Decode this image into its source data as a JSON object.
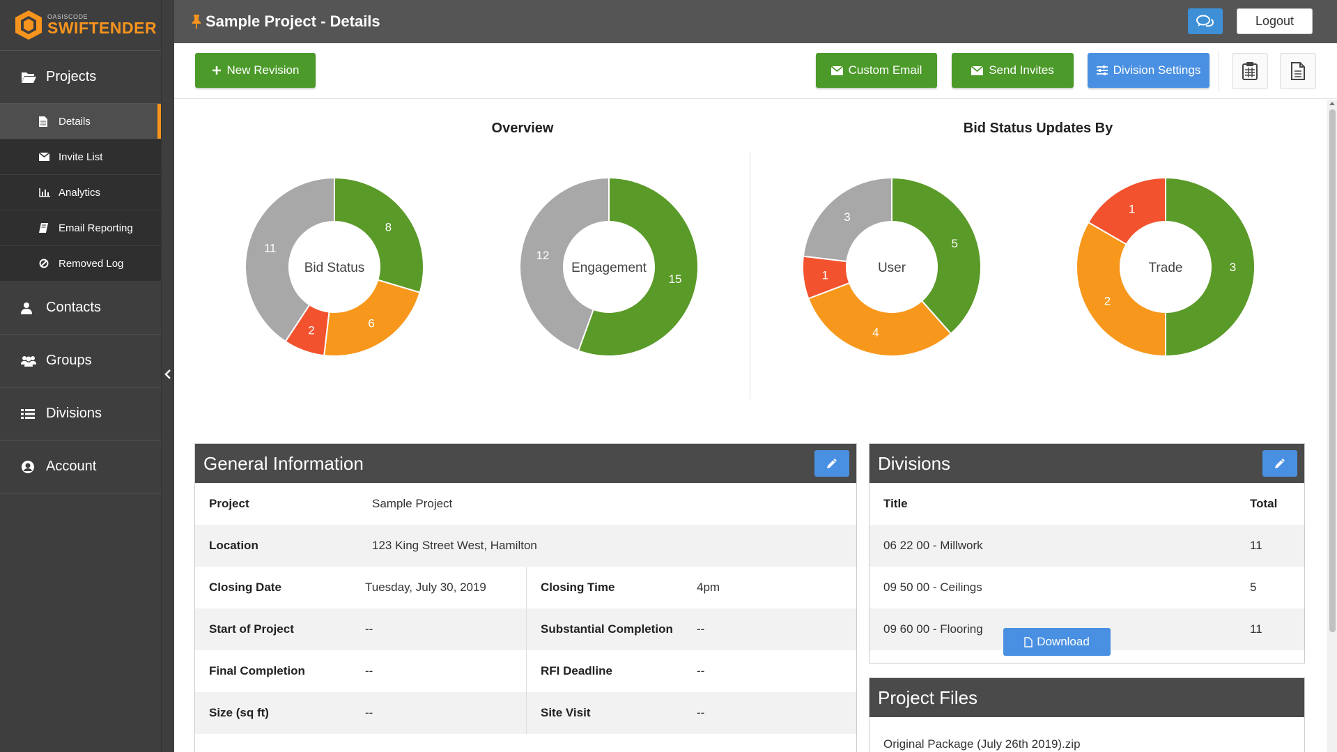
{
  "brand": {
    "small": "OASISCODE",
    "big": "SWIFTENDER",
    "accent": "#f7941d"
  },
  "sidebar": {
    "projects": "Projects",
    "sub_items": [
      {
        "label": "Details",
        "icon": "file-icon",
        "active": true
      },
      {
        "label": "Invite List",
        "icon": "envelope-icon"
      },
      {
        "label": "Analytics",
        "icon": "bar-chart-icon"
      },
      {
        "label": "Email Reporting",
        "icon": "book-icon"
      },
      {
        "label": "Removed Log",
        "icon": "ban-icon"
      }
    ],
    "contacts": "Contacts",
    "groups": "Groups",
    "divisions": "Divisions",
    "account": "Account"
  },
  "header": {
    "title": "Sample Project - Details",
    "logout": "Logout"
  },
  "toolbar": {
    "new_revision": "New Revision",
    "custom_email": "Custom Email",
    "send_invites": "Send Invites",
    "division_settings": "Division Settings"
  },
  "charts": {
    "overview_title": "Overview",
    "bid_updates_title": "Bid Status Updates By"
  },
  "colors": {
    "green": "#5a9a28",
    "orange": "#f7981d",
    "red": "#f2522e",
    "gray": "#a8a8a8"
  },
  "chart_data": [
    {
      "type": "pie",
      "title": "Bid Status",
      "slices": [
        {
          "value": 8,
          "color": "green"
        },
        {
          "value": 6,
          "color": "orange"
        },
        {
          "value": 2,
          "color": "red"
        },
        {
          "value": 11,
          "color": "gray"
        }
      ]
    },
    {
      "type": "pie",
      "title": "Engagement",
      "slices": [
        {
          "value": 15,
          "color": "green"
        },
        {
          "value": 12,
          "color": "gray"
        }
      ]
    },
    {
      "type": "pie",
      "title": "User",
      "slices": [
        {
          "value": 5,
          "color": "green"
        },
        {
          "value": 4,
          "color": "orange"
        },
        {
          "value": 1,
          "color": "red"
        },
        {
          "value": 3,
          "color": "gray"
        }
      ]
    },
    {
      "type": "pie",
      "title": "Trade",
      "slices": [
        {
          "value": 3,
          "color": "green"
        },
        {
          "value": 2,
          "color": "orange"
        },
        {
          "value": 1,
          "color": "red"
        }
      ]
    }
  ],
  "general": {
    "title": "General Information",
    "project_label": "Project",
    "project_value": "Sample Project",
    "location_label": "Location",
    "location_value": "123 King Street West, Hamilton",
    "closing_date_label": "Closing Date",
    "closing_date_value": "Tuesday, July 30, 2019",
    "closing_time_label": "Closing Time",
    "closing_time_value": "4pm",
    "start_label": "Start of Project",
    "start_value": "--",
    "substantial_label": "Substantial Completion",
    "substantial_value": "--",
    "final_label": "Final Completion",
    "final_value": "--",
    "rfi_label": "RFI Deadline",
    "rfi_value": "--",
    "size_label": "Size (sq ft)",
    "size_value": "--",
    "site_label": "Site Visit",
    "site_value": "--"
  },
  "divisions_panel": {
    "title": "Divisions",
    "col_title": "Title",
    "col_total": "Total",
    "rows": [
      {
        "title": "06 22 00 - Millwork",
        "total": "11"
      },
      {
        "title": "09 50 00 - Ceilings",
        "total": "5"
      },
      {
        "title": "09 60 00 - Flooring",
        "total": "11"
      }
    ]
  },
  "files_panel": {
    "title": "Project Files",
    "file_name": "Original Package (July 26th 2019).zip",
    "download": "Download"
  }
}
